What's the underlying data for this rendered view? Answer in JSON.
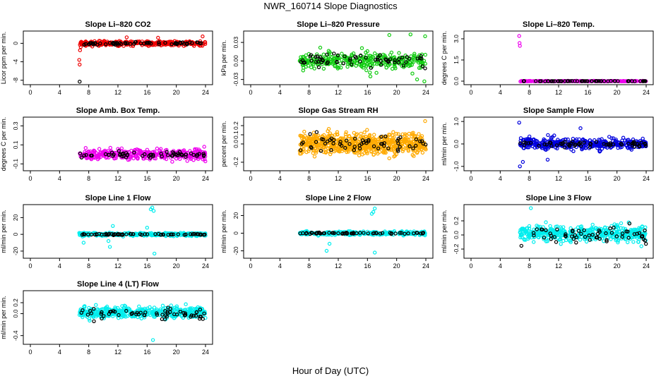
{
  "title": "NWR_160714  Slope Diagnostics",
  "xlabel": "Hour of Day (UTC)",
  "colors": {
    "red": "#ee0000",
    "green": "#11cc11",
    "magenta": "#ee00ee",
    "orange": "#ffaa00",
    "blue": "#0000dd",
    "cyan": "#00eeee",
    "black": "#000000"
  },
  "chart_data": [
    {
      "type": "scatter",
      "title": "Slope Li–820 CO2",
      "ylabel": "Licor ppm per min.",
      "xlim": [
        0,
        24
      ],
      "x_ticks": [
        "0",
        "4",
        "8",
        "12",
        "16",
        "20",
        "24"
      ],
      "ylim": [
        -8.5,
        2.2
      ],
      "y_ticks": [
        "-8",
        "-4",
        "0"
      ],
      "y_tick_values": [
        -8,
        -4,
        0
      ],
      "series": [
        {
          "name": "all",
          "color": "red",
          "x_range": [
            6.7,
            24
          ],
          "center": 0,
          "spread": 0.5,
          "n": 320,
          "outliers": [
            [
              6.7,
              -3.6
            ],
            [
              6.75,
              -4.6
            ],
            [
              6.8,
              -1.5
            ],
            [
              6.9,
              -0.8
            ],
            [
              13.2,
              1.3
            ],
            [
              17.5,
              1.2
            ],
            [
              23.6,
              1.5
            ]
          ]
        },
        {
          "name": "hourly",
          "color": "black",
          "x_range": [
            6.7,
            24
          ],
          "center": 0,
          "spread": 0.25,
          "n": 60,
          "outliers": [
            [
              6.75,
              -8.3
            ]
          ]
        }
      ]
    },
    {
      "type": "scatter",
      "title": "Slope Li–820 Pressure",
      "ylabel": "kPa per min.",
      "xlim": [
        0,
        24
      ],
      "x_ticks": [
        "0",
        "4",
        "8",
        "12",
        "16",
        "20",
        "24"
      ],
      "ylim": [
        -0.035,
        0.045
      ],
      "y_ticks": [
        "-0.03",
        "0.00",
        "0.03"
      ],
      "y_tick_values": [
        -0.03,
        0,
        0.03
      ],
      "series": [
        {
          "name": "all",
          "color": "green",
          "x_range": [
            6.7,
            24
          ],
          "center": 0,
          "spread": 0.012,
          "n": 320,
          "outliers": [
            [
              19.0,
              0.042
            ],
            [
              21.9,
              0.043
            ],
            [
              16.4,
              -0.025
            ],
            [
              22.8,
              -0.03
            ],
            [
              23.8,
              -0.033
            ],
            [
              23.9,
              0.04
            ]
          ]
        },
        {
          "name": "hourly",
          "color": "black",
          "x_range": [
            6.7,
            24
          ],
          "center": 0,
          "spread": 0.008,
          "n": 60,
          "outliers": [
            [
              11.4,
              0.012
            ],
            [
              23.9,
              -0.012
            ]
          ]
        }
      ]
    },
    {
      "type": "scatter",
      "title": "Slope Li–820 Temp.",
      "ylabel": "degrees C per min.",
      "xlim": [
        0,
        24
      ],
      "x_ticks": [
        "0",
        "4",
        "8",
        "12",
        "16",
        "20",
        "24"
      ],
      "ylim": [
        -0.1,
        3.4
      ],
      "y_ticks": [
        "0.0",
        "1.5",
        "3.0"
      ],
      "y_tick_values": [
        0,
        1.5,
        3
      ],
      "series": [
        {
          "name": "all",
          "color": "magenta",
          "x_range": [
            6.7,
            24
          ],
          "center": 0,
          "spread": 0.02,
          "n": 250,
          "outliers": [
            [
              6.6,
              3.2
            ],
            [
              6.65,
              2.7
            ],
            [
              6.7,
              2.5
            ]
          ]
        },
        {
          "name": "hourly",
          "color": "black",
          "x_range": [
            6.7,
            24
          ],
          "center": 0,
          "spread": 0.01,
          "n": 60,
          "outliers": []
        }
      ]
    },
    {
      "type": "scatter",
      "title": "Slope Amb. Box Temp.",
      "ylabel": "degrees C per min.",
      "xlim": [
        0,
        24
      ],
      "x_ticks": [
        "0",
        "4",
        "8",
        "12",
        "16",
        "20",
        "24"
      ],
      "ylim": [
        -0.15,
        0.37
      ],
      "y_ticks": [
        "-0.1",
        "0.1",
        "0.3"
      ],
      "y_tick_values": [
        -0.1,
        0.1,
        0.3
      ],
      "series": [
        {
          "name": "all",
          "color": "magenta",
          "x_range": [
            6.7,
            24
          ],
          "center": 0,
          "spread": 0.05,
          "n": 340,
          "outliers": []
        },
        {
          "name": "hourly",
          "color": "black",
          "x_range": [
            6.7,
            24
          ],
          "center": 0,
          "spread": 0.03,
          "n": 60,
          "outliers": []
        }
      ]
    },
    {
      "type": "scatter",
      "title": "Slope Gas Stream RH",
      "ylabel": "percent per min.",
      "xlim": [
        0,
        24
      ],
      "x_ticks": [
        "0",
        "4",
        "8",
        "12",
        "16",
        "20",
        "24"
      ],
      "ylim": [
        -0.27,
        0.27
      ],
      "y_ticks": [
        "-0.2",
        "0.0",
        "0.1",
        "0.2"
      ],
      "y_tick_values": [
        -0.2,
        0,
        0.1,
        0.2
      ],
      "series": [
        {
          "name": "all",
          "color": "orange",
          "x_range": [
            6.7,
            24
          ],
          "center": 0,
          "spread": 0.1,
          "n": 650,
          "outliers": [
            [
              23.9,
              0.25
            ]
          ]
        },
        {
          "name": "hourly",
          "color": "black",
          "x_range": [
            6.7,
            24
          ],
          "center": 0,
          "spread": 0.08,
          "n": 60,
          "outliers": []
        }
      ]
    },
    {
      "type": "scatter",
      "title": "Slope Sample Flow",
      "ylabel": "ml/min per min.",
      "xlim": [
        0,
        24
      ],
      "x_ticks": [
        "0",
        "4",
        "8",
        "12",
        "16",
        "20",
        "24"
      ],
      "ylim": [
        -1.1,
        1.1
      ],
      "y_ticks": [
        "-1.0",
        "0.0",
        "1.0"
      ],
      "y_tick_values": [
        -1,
        0,
        1
      ],
      "series": [
        {
          "name": "all",
          "color": "blue",
          "x_range": [
            6.7,
            24
          ],
          "center": 0,
          "spread": 0.22,
          "n": 380,
          "outliers": [
            [
              6.6,
              0.95
            ],
            [
              6.7,
              -1.0
            ],
            [
              7.1,
              -0.8
            ],
            [
              10.5,
              -0.7
            ],
            [
              15.0,
              0.7
            ]
          ]
        },
        {
          "name": "hourly",
          "color": "black",
          "x_range": [
            6.7,
            24
          ],
          "center": 0,
          "spread": 0.12,
          "n": 60,
          "outliers": []
        }
      ]
    },
    {
      "type": "scatter",
      "title": "Slope Line 1 Flow",
      "ylabel": "ml/min per min.",
      "xlim": [
        0,
        24
      ],
      "x_ticks": [
        "0",
        "4",
        "8",
        "12",
        "16",
        "20",
        "24"
      ],
      "ylim": [
        -26,
        33
      ],
      "y_ticks": [
        "-20",
        "0",
        "20"
      ],
      "y_tick_values": [
        -20,
        0,
        20
      ],
      "series": [
        {
          "name": "all",
          "color": "cyan",
          "x_range": [
            6.7,
            24
          ],
          "center": 0,
          "spread": 1.8,
          "n": 320,
          "outliers": [
            [
              16.5,
              30
            ],
            [
              16.7,
              32
            ],
            [
              16.9,
              28
            ],
            [
              17.0,
              -23
            ],
            [
              7.3,
              -10
            ],
            [
              10.7,
              -8
            ],
            [
              11.3,
              10
            ],
            [
              16.0,
              8
            ],
            [
              10.9,
              -15
            ]
          ]
        },
        {
          "name": "hourly",
          "color": "black",
          "x_range": [
            6.7,
            24
          ],
          "center": 0,
          "spread": 0.8,
          "n": 60,
          "outliers": []
        }
      ]
    },
    {
      "type": "scatter",
      "title": "Slope Line 2 Flow",
      "ylabel": "ml/min per min.",
      "xlim": [
        0,
        24
      ],
      "x_ticks": [
        "0",
        "4",
        "8",
        "12",
        "16",
        "20",
        "24"
      ],
      "ylim": [
        -26,
        30
      ],
      "y_ticks": [
        "-20",
        "0",
        "20"
      ],
      "y_tick_values": [
        -20,
        0,
        20
      ],
      "series": [
        {
          "name": "all",
          "color": "cyan",
          "x_range": [
            6.7,
            24
          ],
          "center": 0,
          "spread": 1.8,
          "n": 320,
          "outliers": [
            [
              16.6,
              22
            ],
            [
              16.8,
              24
            ],
            [
              17.0,
              28
            ],
            [
              17.0,
              -22
            ],
            [
              10.8,
              -12
            ],
            [
              10.4,
              -20
            ]
          ]
        },
        {
          "name": "hourly",
          "color": "black",
          "x_range": [
            6.7,
            24
          ],
          "center": 0,
          "spread": 0.8,
          "n": 60,
          "outliers": []
        }
      ]
    },
    {
      "type": "scatter",
      "title": "Slope Line 3 Flow",
      "ylabel": "ml/min per min.",
      "xlim": [
        0,
        24
      ],
      "x_ticks": [
        "0",
        "4",
        "8",
        "12",
        "16",
        "20",
        "24"
      ],
      "ylim": [
        -0.3,
        0.4
      ],
      "y_ticks": [
        "-0.2",
        "0.0",
        "0.2"
      ],
      "y_tick_values": [
        -0.2,
        0,
        0.2
      ],
      "series": [
        {
          "name": "all",
          "color": "cyan",
          "x_range": [
            6.7,
            24
          ],
          "center": 0.02,
          "spread": 0.1,
          "n": 450,
          "outliers": [
            [
              8.2,
              0.38
            ]
          ]
        },
        {
          "name": "hourly",
          "color": "black",
          "x_range": [
            6.7,
            24
          ],
          "center": 0,
          "spread": 0.1,
          "n": 60,
          "outliers": []
        }
      ]
    },
    {
      "type": "scatter",
      "title": "Slope Line 4 (LT) Flow",
      "ylabel": "ml/min per min.",
      "xlim": [
        0,
        24
      ],
      "x_ticks": [
        "0",
        "4",
        "8",
        "12",
        "16",
        "20",
        "24"
      ],
      "ylim": [
        -0.52,
        0.38
      ],
      "y_ticks": [
        "-0.4",
        "0.0",
        "0.2"
      ],
      "y_tick_values": [
        -0.4,
        0,
        0.2
      ],
      "series": [
        {
          "name": "all",
          "color": "cyan",
          "x_range": [
            6.7,
            24
          ],
          "center": 0.02,
          "spread": 0.09,
          "n": 450,
          "outliers": [
            [
              16.8,
              -0.48
            ]
          ]
        },
        {
          "name": "hourly",
          "color": "black",
          "x_range": [
            6.7,
            24
          ],
          "center": 0,
          "spread": 0.08,
          "n": 60,
          "outliers": []
        }
      ]
    }
  ]
}
